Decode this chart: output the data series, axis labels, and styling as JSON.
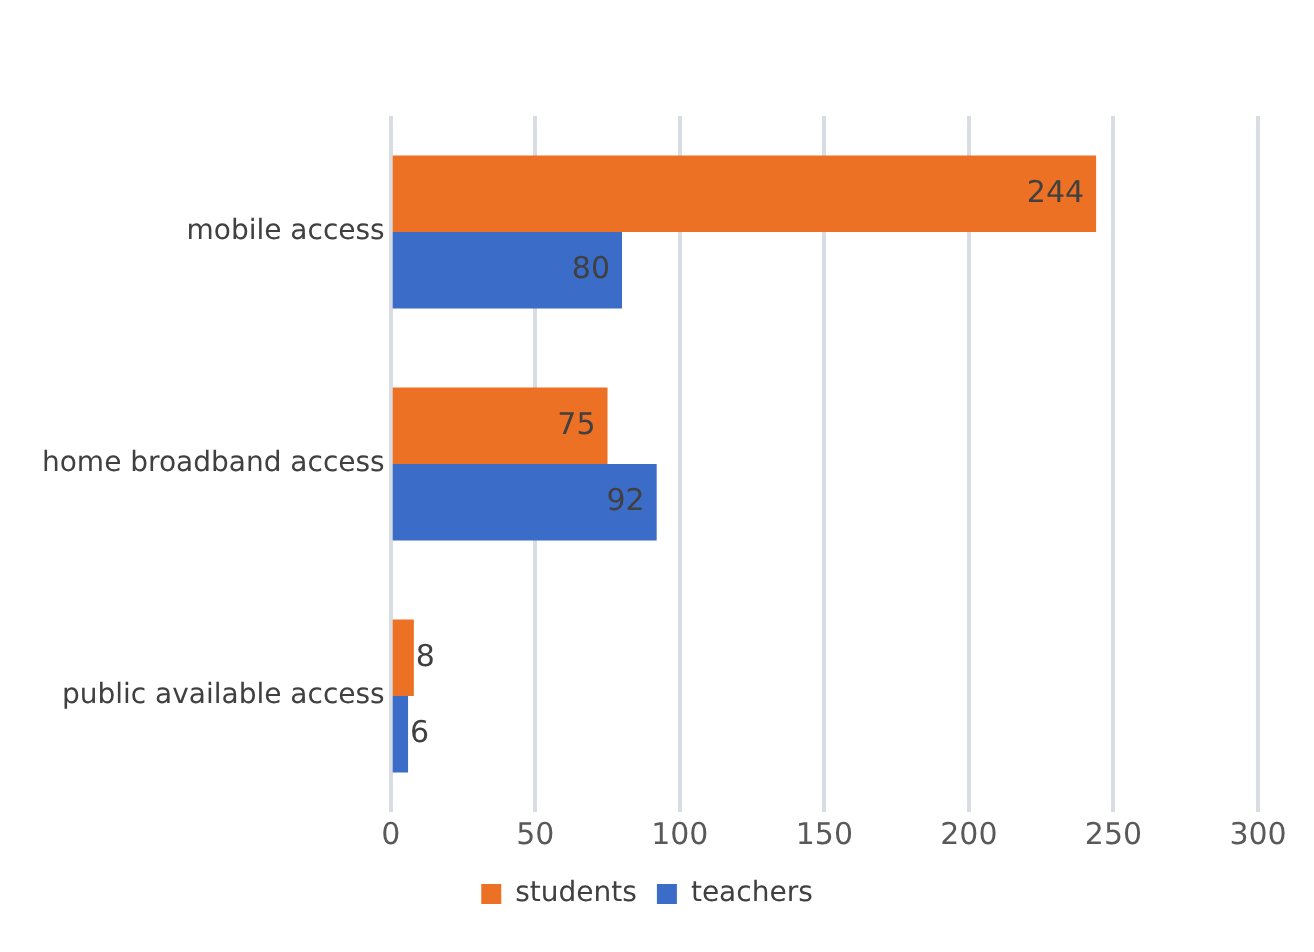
{
  "chart_data": {
    "type": "bar",
    "orientation": "horizontal",
    "categories": [
      "mobile access",
      "home broadband access",
      "public available access"
    ],
    "series": [
      {
        "name": "students",
        "color": "#ed7125",
        "values": [
          244,
          75,
          8
        ]
      },
      {
        "name": "teachers",
        "color": "#3a6cc8",
        "values": [
          80,
          92,
          6
        ]
      }
    ],
    "xlim": [
      0,
      300
    ],
    "xticks": [
      0,
      50,
      100,
      150,
      200,
      250,
      300
    ],
    "grid": "x",
    "legend": "bottom",
    "data_labels": true
  }
}
